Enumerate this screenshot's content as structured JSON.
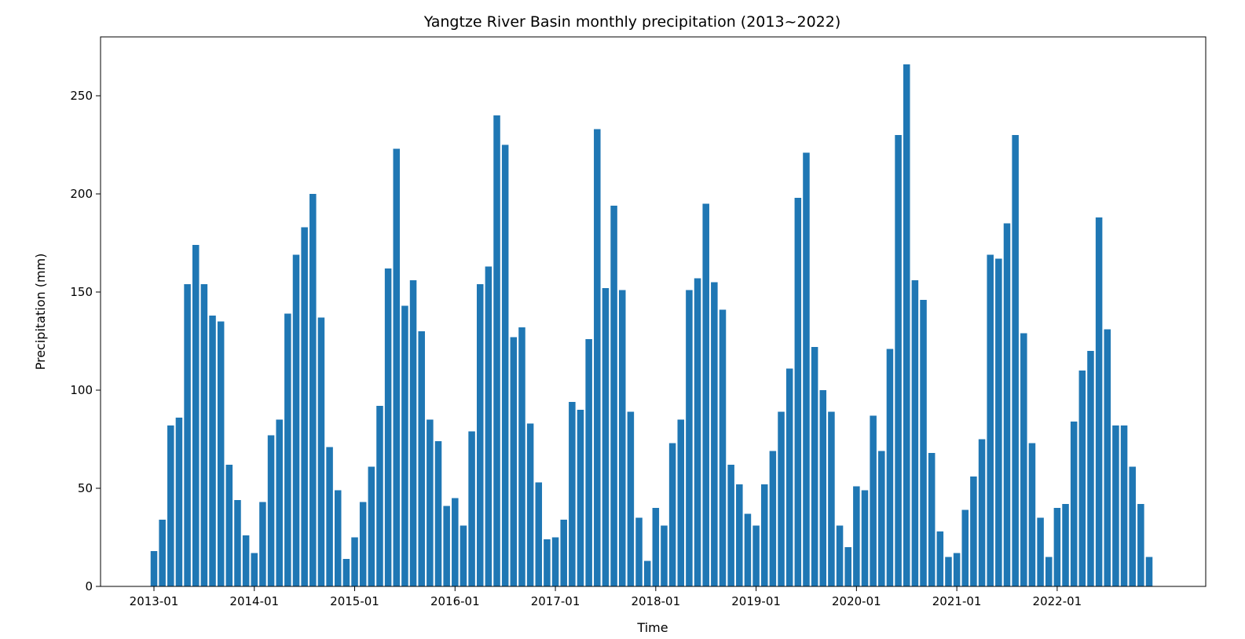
{
  "chart_data": {
    "type": "bar",
    "title": "Yangtze River Basin monthly precipitation (2013~2022)",
    "xlabel": "Time",
    "ylabel": "Precipitation (mm)",
    "ylim": [
      0,
      280
    ],
    "grid": false,
    "bar_color": "#1f77b4",
    "y_ticks": [
      0,
      50,
      100,
      150,
      200,
      250
    ],
    "x_tick_labels": [
      "2013-01",
      "2014-01",
      "2015-01",
      "2016-01",
      "2017-01",
      "2018-01",
      "2019-01",
      "2020-01",
      "2021-01",
      "2022-01"
    ],
    "categories": [
      "2013-01",
      "2013-02",
      "2013-03",
      "2013-04",
      "2013-05",
      "2013-06",
      "2013-07",
      "2013-08",
      "2013-09",
      "2013-10",
      "2013-11",
      "2013-12",
      "2014-01",
      "2014-02",
      "2014-03",
      "2014-04",
      "2014-05",
      "2014-06",
      "2014-07",
      "2014-08",
      "2014-09",
      "2014-10",
      "2014-11",
      "2014-12",
      "2015-01",
      "2015-02",
      "2015-03",
      "2015-04",
      "2015-05",
      "2015-06",
      "2015-07",
      "2015-08",
      "2015-09",
      "2015-10",
      "2015-11",
      "2015-12",
      "2016-01",
      "2016-02",
      "2016-03",
      "2016-04",
      "2016-05",
      "2016-06",
      "2016-07",
      "2016-08",
      "2016-09",
      "2016-10",
      "2016-11",
      "2016-12",
      "2017-01",
      "2017-02",
      "2017-03",
      "2017-04",
      "2017-05",
      "2017-06",
      "2017-07",
      "2017-08",
      "2017-09",
      "2017-10",
      "2017-11",
      "2017-12",
      "2018-01",
      "2018-02",
      "2018-03",
      "2018-04",
      "2018-05",
      "2018-06",
      "2018-07",
      "2018-08",
      "2018-09",
      "2018-10",
      "2018-11",
      "2018-12",
      "2019-01",
      "2019-02",
      "2019-03",
      "2019-04",
      "2019-05",
      "2019-06",
      "2019-07",
      "2019-08",
      "2019-09",
      "2019-10",
      "2019-11",
      "2019-12",
      "2020-01",
      "2020-02",
      "2020-03",
      "2020-04",
      "2020-05",
      "2020-06",
      "2020-07",
      "2020-08",
      "2020-09",
      "2020-10",
      "2020-11",
      "2020-12",
      "2021-01",
      "2021-02",
      "2021-03",
      "2021-04",
      "2021-05",
      "2021-06",
      "2021-07",
      "2021-08",
      "2021-09",
      "2021-10",
      "2021-11",
      "2021-12",
      "2022-01",
      "2022-02",
      "2022-03",
      "2022-04",
      "2022-05",
      "2022-06",
      "2022-07",
      "2022-08",
      "2022-09",
      "2022-10",
      "2022-11",
      "2022-12"
    ],
    "values": [
      18,
      34,
      82,
      86,
      154,
      174,
      154,
      138,
      135,
      62,
      44,
      26,
      17,
      43,
      77,
      85,
      139,
      169,
      183,
      200,
      137,
      71,
      49,
      14,
      25,
      43,
      61,
      92,
      162,
      223,
      143,
      156,
      130,
      85,
      74,
      41,
      45,
      31,
      79,
      154,
      163,
      240,
      225,
      127,
      132,
      83,
      53,
      24,
      25,
      34,
      94,
      90,
      126,
      233,
      152,
      194,
      151,
      89,
      35,
      13,
      40,
      31,
      73,
      85,
      151,
      157,
      195,
      155,
      141,
      62,
      52,
      37,
      31,
      52,
      69,
      89,
      111,
      198,
      221,
      122,
      100,
      89,
      31,
      20,
      51,
      49,
      87,
      69,
      121,
      230,
      266,
      156,
      146,
      68,
      28,
      15,
      17,
      39,
      56,
      75,
      169,
      167,
      185,
      230,
      129,
      73,
      35,
      15,
      40,
      42,
      84,
      110,
      120,
      188,
      131,
      82,
      82,
      61,
      42,
      15
    ]
  }
}
